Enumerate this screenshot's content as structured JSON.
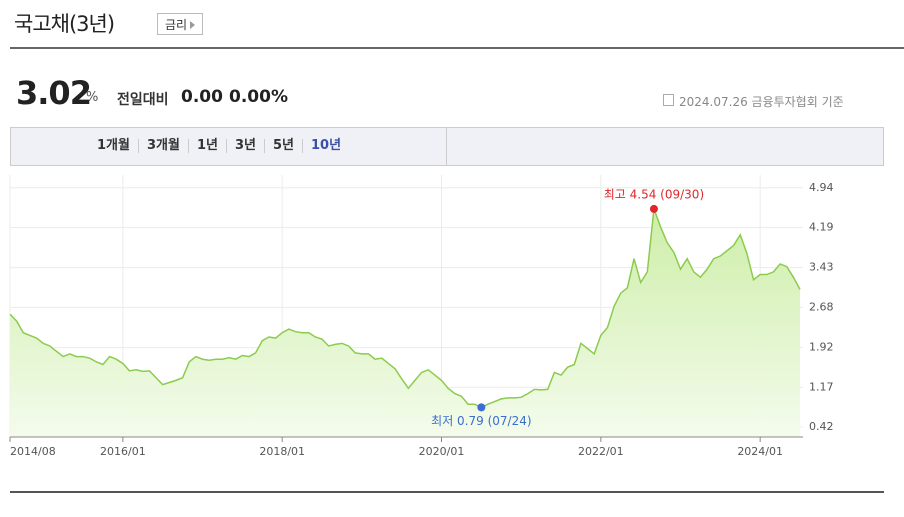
{
  "header": {
    "title": "국고채(3년)",
    "button": "금리"
  },
  "summary": {
    "price": "3.02",
    "unit": "%",
    "change_label": "전일대비",
    "change": "0.00",
    "change_pct": "0.00%",
    "source": "2024.07.26 금융투자협회 기준"
  },
  "tabs": [
    "1개월",
    "3개월",
    "1년",
    "3년",
    "5년",
    "10년"
  ],
  "chart_data": {
    "type": "area",
    "x": [
      "2014/08",
      "2014/09",
      "2014/10",
      "2014/11",
      "2014/12",
      "2015/01",
      "2015/02",
      "2015/03",
      "2015/04",
      "2015/05",
      "2015/06",
      "2015/07",
      "2015/08",
      "2015/09",
      "2015/10",
      "2015/11",
      "2015/12",
      "2016/01",
      "2016/02",
      "2016/03",
      "2016/04",
      "2016/05",
      "2016/06",
      "2016/07",
      "2016/08",
      "2016/09",
      "2016/10",
      "2016/11",
      "2016/12",
      "2017/01",
      "2017/02",
      "2017/03",
      "2017/04",
      "2017/05",
      "2017/06",
      "2017/07",
      "2017/08",
      "2017/09",
      "2017/10",
      "2017/11",
      "2017/12",
      "2018/01",
      "2018/02",
      "2018/03",
      "2018/04",
      "2018/05",
      "2018/06",
      "2018/07",
      "2018/08",
      "2018/09",
      "2018/10",
      "2018/11",
      "2018/12",
      "2019/01",
      "2019/02",
      "2019/03",
      "2019/04",
      "2019/05",
      "2019/06",
      "2019/07",
      "2019/08",
      "2019/09",
      "2019/10",
      "2019/11",
      "2019/12",
      "2020/01",
      "2020/02",
      "2020/03",
      "2020/04",
      "2020/05",
      "2020/06",
      "2020/07",
      "2020/08",
      "2020/09",
      "2020/10",
      "2020/11",
      "2020/12",
      "2021/01",
      "2021/02",
      "2021/03",
      "2021/04",
      "2021/05",
      "2021/06",
      "2021/07",
      "2021/08",
      "2021/09",
      "2021/10",
      "2021/11",
      "2021/12",
      "2022/01",
      "2022/02",
      "2022/03",
      "2022/04",
      "2022/05",
      "2022/06",
      "2022/07",
      "2022/08",
      "2022/09",
      "2022/10",
      "2022/11",
      "2022/12",
      "2023/01",
      "2023/02",
      "2023/03",
      "2023/04",
      "2023/05",
      "2023/06",
      "2023/07",
      "2023/08",
      "2023/09",
      "2023/10",
      "2023/11",
      "2023/12",
      "2024/01",
      "2024/02",
      "2024/03",
      "2024/04",
      "2024/05",
      "2024/06",
      "2024/07"
    ],
    "series": [
      {
        "name": "국고채(3년)",
        "color": "#8ccb4e",
        "values": [
          2.55,
          2.42,
          2.2,
          2.15,
          2.1,
          2.0,
          1.95,
          1.85,
          1.75,
          1.8,
          1.75,
          1.75,
          1.72,
          1.65,
          1.6,
          1.75,
          1.7,
          1.62,
          1.48,
          1.5,
          1.47,
          1.48,
          1.35,
          1.22,
          1.26,
          1.3,
          1.35,
          1.65,
          1.75,
          1.7,
          1.68,
          1.7,
          1.7,
          1.73,
          1.7,
          1.77,
          1.75,
          1.82,
          2.05,
          2.12,
          2.1,
          2.2,
          2.27,
          2.22,
          2.2,
          2.2,
          2.12,
          2.08,
          1.95,
          1.98,
          2.0,
          1.95,
          1.82,
          1.8,
          1.8,
          1.7,
          1.72,
          1.62,
          1.52,
          1.33,
          1.15,
          1.3,
          1.45,
          1.5,
          1.4,
          1.3,
          1.15,
          1.05,
          1.0,
          0.85,
          0.85,
          0.79,
          0.85,
          0.9,
          0.95,
          0.97,
          0.97,
          0.98,
          1.05,
          1.13,
          1.12,
          1.13,
          1.45,
          1.4,
          1.55,
          1.6,
          2.0,
          1.9,
          1.8,
          2.15,
          2.3,
          2.7,
          2.95,
          3.05,
          3.6,
          3.15,
          3.35,
          4.54,
          4.2,
          3.9,
          3.72,
          3.4,
          3.6,
          3.35,
          3.25,
          3.4,
          3.6,
          3.65,
          3.75,
          3.85,
          4.05,
          3.7,
          3.2,
          3.3,
          3.3,
          3.35,
          3.5,
          3.45,
          3.25,
          3.02
        ]
      }
    ],
    "xlim": [
      "2014/08",
      "2024/07"
    ],
    "xticks": [
      "2014/08",
      "2016/01",
      "2018/01",
      "2020/01",
      "2022/01",
      "2024/01"
    ],
    "ylim": [
      0.23,
      5.03
    ],
    "yticks": [
      0.42,
      1.17,
      1.92,
      2.68,
      3.43,
      4.19,
      4.94
    ],
    "grid": true,
    "annotations": [
      {
        "text": "최고 4.54 (09/30)",
        "x": "2022/09",
        "value": 4.54,
        "color": "#e0262b"
      },
      {
        "text": "최저 0.79 (07/24)",
        "x": "2020/07",
        "value": 0.79,
        "color": "#3a6fd0"
      }
    ]
  }
}
